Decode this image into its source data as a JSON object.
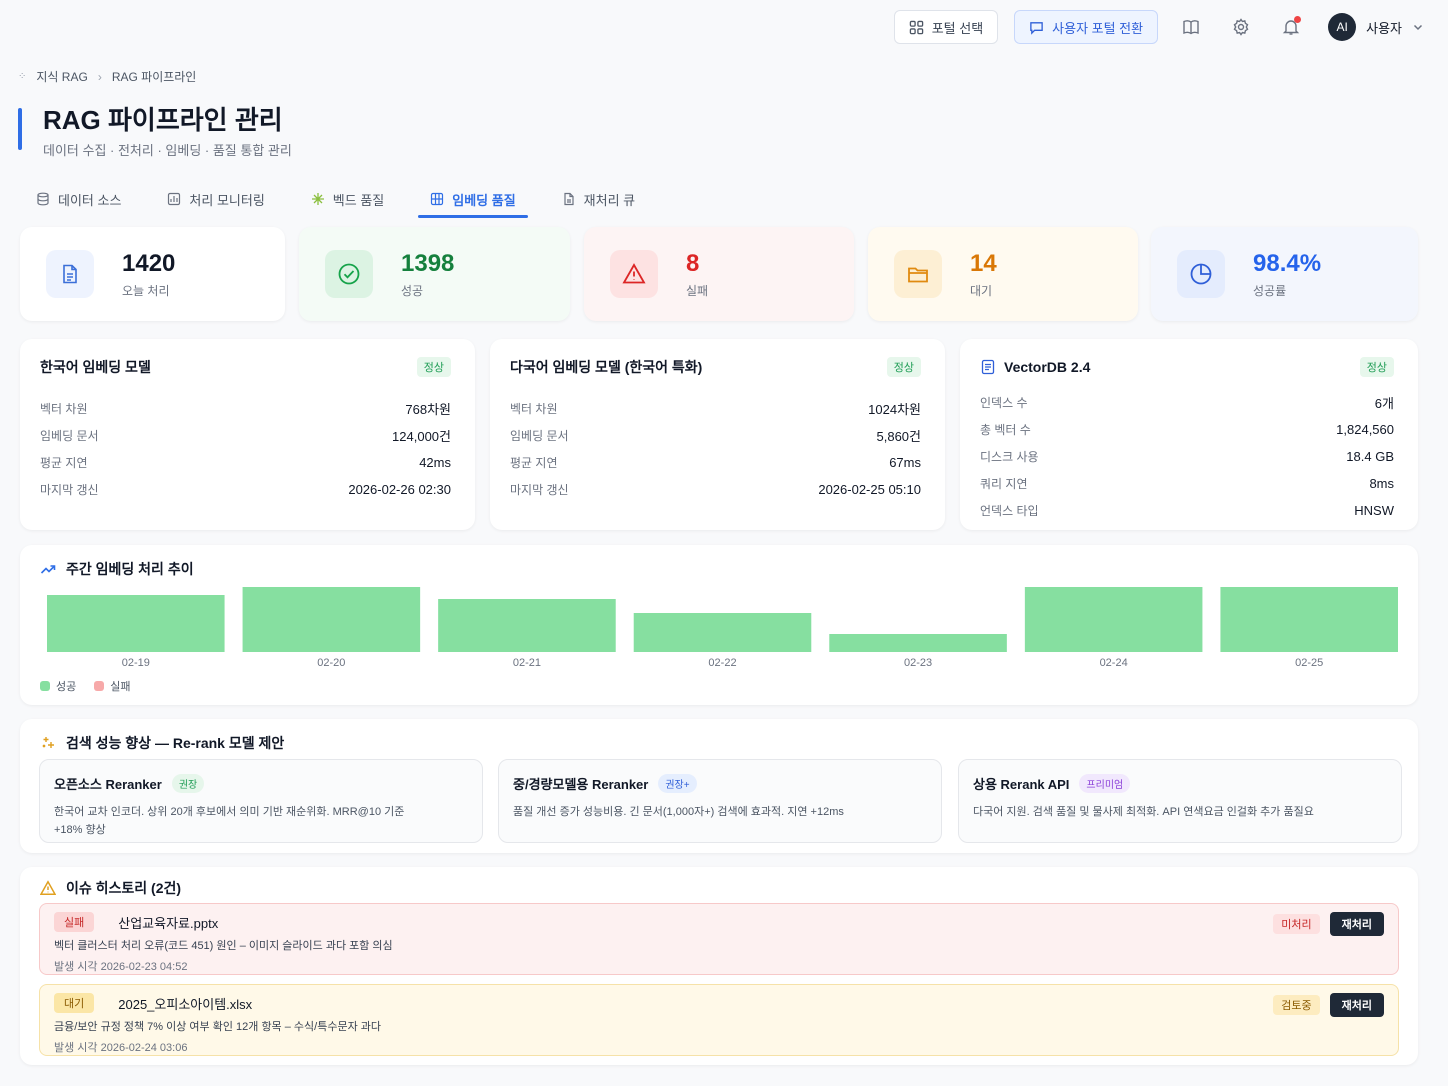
{
  "topbar": {
    "portal_select": "포털 선택",
    "user_portal_switch": "사용자 포털 전환",
    "avatar_initials": "AI",
    "user_name": "사용자"
  },
  "breadcrumb": {
    "root": "지식 RAG",
    "current": "RAG 파이프라인"
  },
  "page": {
    "title": "RAG 파이프라인 관리",
    "subtitle": "데이터 수집 · 전처리 · 임베딩 · 품질 통합 관리"
  },
  "tabs": [
    {
      "label": "데이터 소스",
      "icon": "database-icon"
    },
    {
      "label": "처리 모니터링",
      "icon": "monitor-icon"
    },
    {
      "label": "벡드 품질",
      "icon": "sparkle-icon"
    },
    {
      "label": "임베딩 품질",
      "icon": "grid-icon",
      "active": true
    },
    {
      "label": "재처리 큐",
      "icon": "document-icon"
    }
  ],
  "stats": [
    {
      "value": "1420",
      "label": "오늘 처리",
      "color": "#111827",
      "bg": "#ffffff",
      "icon_bg": "#eef3fe",
      "icon_color": "#3b6fd8",
      "icon": "document-icon"
    },
    {
      "value": "1398",
      "label": "성공",
      "color": "#15803d",
      "bg": "#f4fbf6",
      "icon_bg": "#dcf3e3",
      "icon_color": "#16a34a",
      "icon": "check-circle-icon"
    },
    {
      "value": "8",
      "label": "실패",
      "color": "#dc2626",
      "bg": "#fdf4f4",
      "icon_bg": "#fde2e2",
      "icon_color": "#dc2626",
      "icon": "warning-icon"
    },
    {
      "value": "14",
      "label": "대기",
      "color": "#d97706",
      "bg": "#fffaf0",
      "icon_bg": "#fdefd4",
      "icon_color": "#e08a10",
      "icon": "folder-icon"
    },
    {
      "value": "98.4%",
      "label": "성공률",
      "color": "#2563eb",
      "bg": "#f3f6fd",
      "icon_bg": "#e4ecfd",
      "icon_color": "#2f5fd8",
      "icon": "pie-chart-icon"
    }
  ],
  "models": [
    {
      "title": "한국어 임베딩 모델",
      "badge": "정상",
      "rows": [
        {
          "k": "벡터 차원",
          "v": "768차원"
        },
        {
          "k": "임베딩 문서",
          "v": "124,000건"
        },
        {
          "k": "평균 지연",
          "v": "42ms"
        },
        {
          "k": "마지막 갱신",
          "v": "2026-02-26 02:30"
        }
      ]
    },
    {
      "title": "다국어 임베딩 모델 (한국어 특화)",
      "badge": "정상",
      "rows": [
        {
          "k": "벡터 차원",
          "v": "1024차원"
        },
        {
          "k": "임베딩 문서",
          "v": "5,860건"
        },
        {
          "k": "평균 지연",
          "v": "67ms"
        },
        {
          "k": "마지막 갱신",
          "v": "2026-02-25 05:10"
        }
      ]
    },
    {
      "title": "VectorDB 2.4",
      "badge": "정상",
      "rows": [
        {
          "k": "인덱스 수",
          "v": "6개"
        },
        {
          "k": "총 벡터 수",
          "v": "1,824,560"
        },
        {
          "k": "디스크 사용",
          "v": "18.4 GB"
        },
        {
          "k": "쿼리 지연",
          "v": "8ms"
        },
        {
          "k": "언덱스 타입",
          "v": "HNSW"
        }
      ]
    }
  ],
  "chart_data": {
    "type": "bar",
    "title": "주간 임베딩 처리 추이",
    "categories": [
      "02-19",
      "02-20",
      "02-21",
      "02-22",
      "02-23",
      "02-24",
      "02-25"
    ],
    "series": [
      {
        "name": "성공",
        "values": [
          57,
          65,
          53,
          39,
          18,
          65,
          65
        ],
        "color": "#86dfa0"
      },
      {
        "name": "실패",
        "values": [
          0,
          0,
          0,
          0,
          0,
          0,
          0
        ],
        "color": "#f7a9a9"
      }
    ],
    "ylim": [
      0,
      65
    ],
    "legend": "bottom-left",
    "grid": false
  },
  "rerank": {
    "title": "검색 성능 향상 — Re-rank 모델 제안",
    "items": [
      {
        "name": "오픈소스 Reranker",
        "badge": "권장",
        "badge_bg": "#e6f6eb",
        "badge_color": "#1f9d55",
        "desc": "한국어 교차 인코더. 상위 20개 후보에서 의미 기반 재순위화. MRR@10 기준 +18% 향상"
      },
      {
        "name": "중/경량모델용 Reranker",
        "badge": "권장+",
        "badge_bg": "#e5eefe",
        "badge_color": "#2f5fd8",
        "desc": "품질 개선 증가 성능비용. 긴 문서(1,000자+) 검색에 효과적. 지연 +12ms"
      },
      {
        "name": "상용 Rerank API",
        "badge": "프리미엄",
        "badge_bg": "#f1e8fd",
        "badge_color": "#8b3fd8",
        "desc": "다국어 지원. 검색 품질 및 물사제 최적화. API 연색요금 인걸화 추가 품질요"
      }
    ]
  },
  "issues": {
    "title": "이슈 히스토리 (2건)",
    "items": [
      {
        "tag": "실패",
        "file": "산업교육자료.pptx",
        "desc": "벡터 클러스터 처리 오류(코드 451) 원인 – 이미지 슬라이드 과다 포함 의심",
        "time": "발생 시각 2026-02-23 04:52",
        "status": "미처리",
        "action": "재처리"
      },
      {
        "tag": "대기",
        "file": "2025_오피소아이템.xlsx",
        "desc": "금융/보안 규정 정책 7% 이상 여부 확인 12개 항목 – 수식/특수문자 과다",
        "time": "발생 시각 2026-02-24 03:06",
        "status": "검토중",
        "action": "재처리"
      }
    ]
  }
}
